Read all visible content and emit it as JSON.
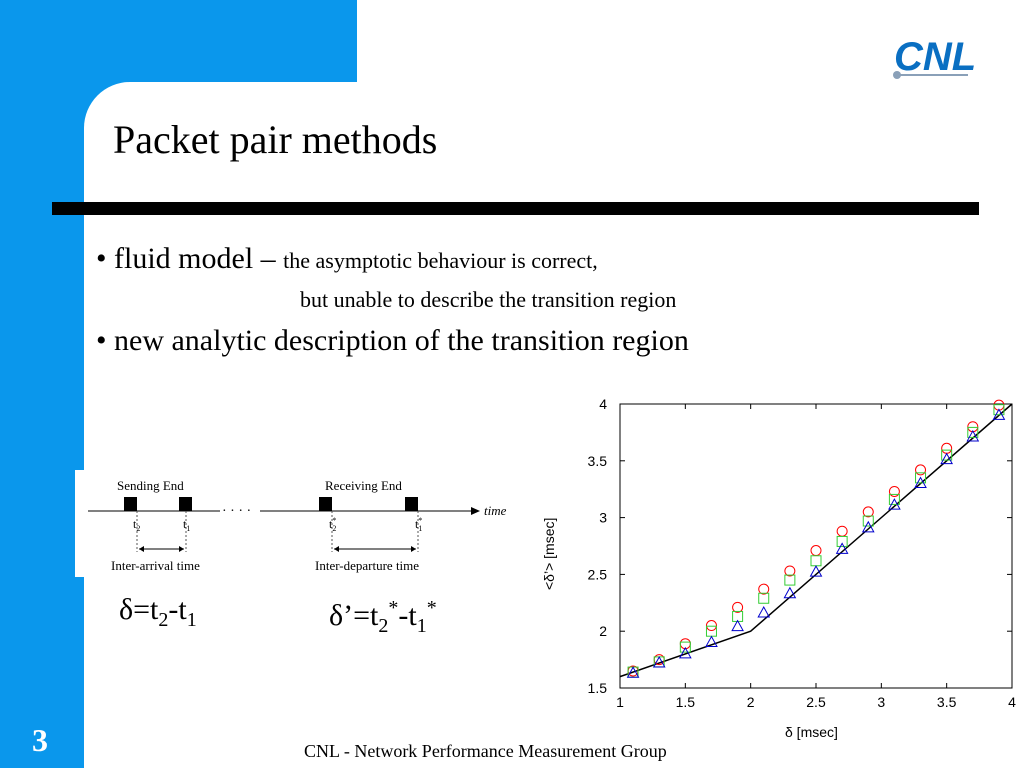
{
  "slide": {
    "title": "Packet pair methods",
    "number": "3",
    "footer": "CNL - Network Performance Measurement Group",
    "logo_text": "CNL"
  },
  "bullets": [
    {
      "main": "• fluid model – ",
      "detail": "the asymptotic behaviour is correct,",
      "continuation": "but unable to describe the transition region"
    },
    {
      "main": "• new analytic description of the transition region"
    }
  ],
  "diagram": {
    "sending_label": "Sending End",
    "receiving_label": "Receiving End",
    "time_label": "time",
    "dots": "· · · ·",
    "t2": "t",
    "t2_sub": "2",
    "t1": "t",
    "t1_sub": "1",
    "t2s": "t",
    "t2s_sub": "2",
    "t2s_sup": "*",
    "t1s": "t",
    "t1s_sub": "1",
    "t1s_sup": "*",
    "inter_arrival": "Inter-arrival time",
    "inter_departure": "Inter-departure time"
  },
  "formulas": {
    "f1": {
      "lhs": "δ=t",
      "s1": "2",
      "mid": "-t",
      "s2": "1"
    },
    "f2": {
      "lhs": "δ’=t",
      "s1": "2",
      "sup1": "*",
      "mid": "-t",
      "s2": "1",
      "sup2": "*"
    }
  },
  "chart_data": {
    "type": "scatter",
    "xlabel": "δ [msec]",
    "ylabel": "<δ’> [msec]",
    "xlim": [
      1,
      4
    ],
    "ylim": [
      1.5,
      4
    ],
    "xticks": [
      "1",
      "1.5",
      "2",
      "2.5",
      "3",
      "3.5",
      "4"
    ],
    "yticks": [
      "1.5",
      "2",
      "2.5",
      "3",
      "3.5",
      "4"
    ],
    "grid": false,
    "line": {
      "x": [
        1,
        2,
        4
      ],
      "y": [
        1.6,
        2.0,
        4.0
      ],
      "color": "#000000"
    },
    "series": [
      {
        "marker": "circle",
        "color": "#ff0000",
        "x": [
          1.1,
          1.3,
          1.5,
          1.7,
          1.9,
          2.1,
          2.3,
          2.5,
          2.7,
          2.9,
          3.1,
          3.3,
          3.5,
          3.7,
          3.9
        ],
        "y": [
          1.65,
          1.75,
          1.89,
          2.05,
          2.21,
          2.37,
          2.53,
          2.71,
          2.88,
          3.05,
          3.23,
          3.42,
          3.61,
          3.8,
          3.99
        ]
      },
      {
        "marker": "square",
        "color": "#33cc33",
        "x": [
          1.1,
          1.3,
          1.5,
          1.7,
          1.9,
          2.1,
          2.3,
          2.5,
          2.7,
          2.9,
          3.1,
          3.3,
          3.5,
          3.7,
          3.9
        ],
        "y": [
          1.64,
          1.73,
          1.86,
          2.0,
          2.13,
          2.29,
          2.45,
          2.62,
          2.79,
          2.97,
          3.16,
          3.35,
          3.55,
          3.75,
          3.95
        ]
      },
      {
        "marker": "triangle",
        "color": "#0000cc",
        "x": [
          1.1,
          1.3,
          1.5,
          1.7,
          1.9,
          2.1,
          2.3,
          2.5,
          2.7,
          2.9,
          3.1,
          3.3,
          3.5,
          3.7,
          3.9
        ],
        "y": [
          1.63,
          1.72,
          1.8,
          1.9,
          2.04,
          2.16,
          2.33,
          2.52,
          2.72,
          2.91,
          3.11,
          3.3,
          3.51,
          3.71,
          3.9
        ]
      }
    ]
  }
}
